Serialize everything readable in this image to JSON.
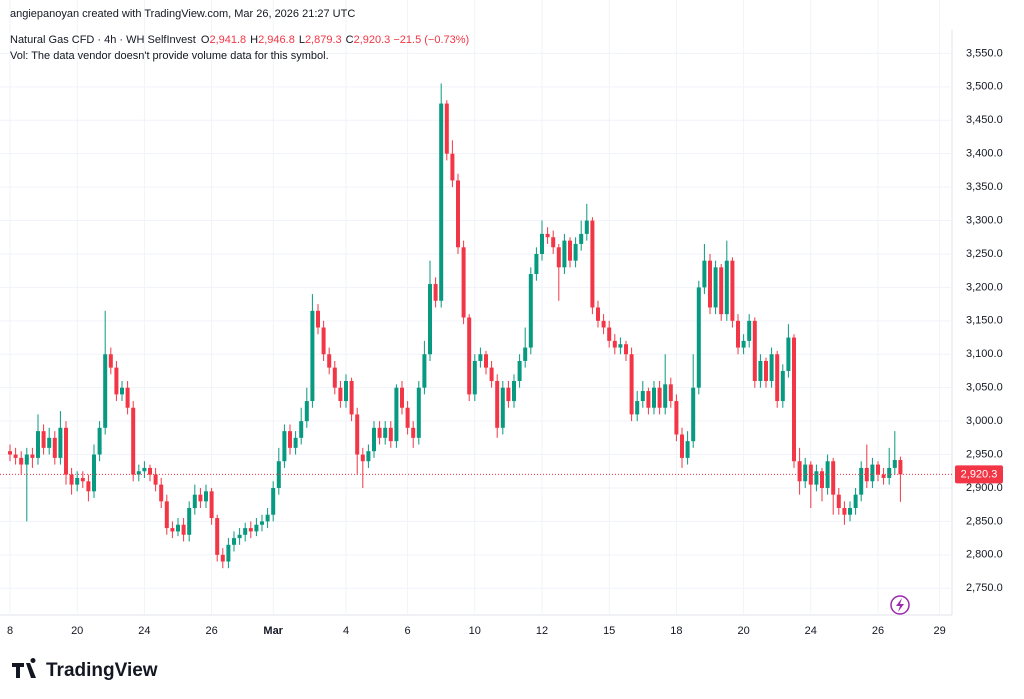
{
  "header": {
    "credit": "angiepanoyan created with TradingView.com, Mar 26, 2026 21:27 UTC"
  },
  "legend": {
    "symbol": "Natural Gas CFD · 4h · WH SelfInvest",
    "fields": [
      {
        "key": "O",
        "value": "2,941.8"
      },
      {
        "key": "H",
        "value": "2,946.8"
      },
      {
        "key": "L",
        "value": "2,879.3"
      },
      {
        "key": "C",
        "value": "2,920.3"
      }
    ],
    "change": "−21.5 (−0.73%)",
    "volume_note": "Vol: The data vendor doesn't provide volume data for this symbol."
  },
  "branding": "TradingView",
  "chart_data": {
    "type": "candlestick",
    "up_color": "#089981",
    "down_color": "#f23645",
    "grid": true,
    "ylim": [
      2710,
      3585
    ],
    "yticks": [
      {
        "value": 2750,
        "label": "2,750.0"
      },
      {
        "value": 2800,
        "label": "2,800.0"
      },
      {
        "value": 2850,
        "label": "2,850.0"
      },
      {
        "value": 2900,
        "label": "2,900.0"
      },
      {
        "value": 2950,
        "label": "2,950.0"
      },
      {
        "value": 3000,
        "label": "3,000.0"
      },
      {
        "value": 3050,
        "label": "3,050.0"
      },
      {
        "value": 3100,
        "label": "3,100.0"
      },
      {
        "value": 3150,
        "label": "3,150.0"
      },
      {
        "value": 3200,
        "label": "3,200.0"
      },
      {
        "value": 3250,
        "label": "3,250.0"
      },
      {
        "value": 3300,
        "label": "3,300.0"
      },
      {
        "value": 3350,
        "label": "3,350.0"
      },
      {
        "value": 3400,
        "label": "3,400.0"
      },
      {
        "value": 3450,
        "label": "3,450.0"
      },
      {
        "value": 3500,
        "label": "3,500.0"
      },
      {
        "value": 3550,
        "label": "3,550.0"
      }
    ],
    "xticks": [
      {
        "value": 0,
        "label": "8"
      },
      {
        "value": 12,
        "label": "20"
      },
      {
        "value": 24,
        "label": "24"
      },
      {
        "value": 36,
        "label": "26"
      },
      {
        "value": 47,
        "label": "Mar"
      },
      {
        "value": 60,
        "label": "4"
      },
      {
        "value": 71,
        "label": "6"
      },
      {
        "value": 83,
        "label": "10"
      },
      {
        "value": 95,
        "label": "12"
      },
      {
        "value": 107,
        "label": "15"
      },
      {
        "value": 119,
        "label": "18"
      },
      {
        "value": 131,
        "label": "20"
      },
      {
        "value": 143,
        "label": "24"
      },
      {
        "value": 155,
        "label": "26"
      },
      {
        "value": 166,
        "label": "29"
      }
    ],
    "last_price": 2920.3,
    "last_price_label": "2,920.3",
    "open": [
      2955,
      2950,
      2945,
      2935,
      2950,
      2945,
      2985,
      2960,
      2975,
      2945,
      2990,
      2920,
      2905,
      2915,
      2910,
      2895,
      2950,
      2990,
      3100,
      3080,
      3040,
      3050,
      3020,
      2920,
      2925,
      2930,
      2920,
      2905,
      2880,
      2840,
      2835,
      2845,
      2830,
      2870,
      2890,
      2880,
      2895,
      2855,
      2800,
      2790,
      2815,
      2825,
      2830,
      2840,
      2835,
      2845,
      2850,
      2860,
      2900,
      2940,
      2985,
      2960,
      2975,
      3000,
      3030,
      3165,
      3140,
      3100,
      3080,
      3050,
      3030,
      3060,
      3010,
      2950,
      2940,
      2955,
      2990,
      2975,
      2990,
      2970,
      3050,
      3020,
      2990,
      2975,
      3050,
      3100,
      3205,
      3180,
      3475,
      3400,
      3360,
      3260,
      3155,
      3040,
      3090,
      3100,
      3080,
      3060,
      2990,
      3050,
      3030,
      3060,
      3090,
      3110,
      3220,
      3250,
      3280,
      3275,
      3260,
      3230,
      3270,
      3240,
      3265,
      3280,
      3300,
      3170,
      3150,
      3140,
      3120,
      3110,
      3115,
      3100,
      3010,
      3030,
      3045,
      3020,
      3050,
      3020,
      3055,
      3030,
      2980,
      2945,
      2970,
      3050,
      3200,
      3240,
      3170,
      3230,
      3160,
      3240,
      3150,
      3110,
      3120,
      3150,
      3060,
      3090,
      3060,
      3100,
      3030,
      3075,
      3125,
      2940,
      2910,
      2935,
      2905,
      2925,
      2900,
      2940,
      2890,
      2870,
      2860,
      2870,
      2890,
      2930,
      2910,
      2935,
      2920,
      2915,
      2930,
      2941.8
    ],
    "high": [
      2965,
      2960,
      2955,
      2960,
      2960,
      3010,
      2995,
      2990,
      2985,
      3015,
      3000,
      2930,
      2925,
      2925,
      2920,
      2965,
      3000,
      3165,
      3110,
      3090,
      3060,
      3060,
      3030,
      2935,
      2940,
      2935,
      2930,
      2915,
      2890,
      2850,
      2855,
      2855,
      2880,
      2905,
      2900,
      2905,
      2900,
      2860,
      2810,
      2825,
      2835,
      2840,
      2848,
      2850,
      2855,
      2860,
      2870,
      2910,
      2960,
      2995,
      2995,
      2985,
      3020,
      3050,
      3190,
      3175,
      3150,
      3110,
      3090,
      3060,
      3070,
      3065,
      3020,
      2960,
      2965,
      3000,
      3000,
      3000,
      3000,
      3055,
      3060,
      3030,
      3000,
      3060,
      3120,
      3240,
      3215,
      3505,
      3480,
      3420,
      3370,
      3270,
      3160,
      3100,
      3110,
      3105,
      3090,
      3070,
      3060,
      3060,
      3070,
      3100,
      3140,
      3230,
      3260,
      3300,
      3290,
      3285,
      3265,
      3280,
      3275,
      3275,
      3300,
      3325,
      3305,
      3180,
      3160,
      3150,
      3130,
      3125,
      3120,
      3110,
      3045,
      3060,
      3050,
      3060,
      3060,
      3100,
      3065,
      3040,
      2990,
      2985,
      3100,
      3210,
      3265,
      3250,
      3240,
      3235,
      3270,
      3245,
      3160,
      3130,
      3160,
      3155,
      3100,
      3095,
      3110,
      3105,
      3085,
      3145,
      3130,
      2960,
      2945,
      2940,
      2935,
      2930,
      2950,
      2945,
      2900,
      2880,
      2880,
      2900,
      2940,
      2965,
      2945,
      2940,
      2930,
      2960,
      2985,
      2946.8
    ],
    "low": [
      2940,
      2935,
      2920,
      2850,
      2930,
      2935,
      2950,
      2950,
      2935,
      2935,
      2905,
      2890,
      2895,
      2900,
      2880,
      2885,
      2940,
      2980,
      3070,
      3030,
      3030,
      3010,
      2910,
      2910,
      2915,
      2910,
      2895,
      2870,
      2830,
      2825,
      2828,
      2820,
      2820,
      2860,
      2870,
      2870,
      2845,
      2790,
      2780,
      2780,
      2805,
      2815,
      2820,
      2825,
      2828,
      2835,
      2840,
      2850,
      2890,
      2930,
      2950,
      2950,
      2965,
      2990,
      3020,
      3130,
      3090,
      3070,
      3040,
      3020,
      3020,
      3000,
      2920,
      2900,
      2930,
      2945,
      2965,
      2965,
      2960,
      2960,
      3010,
      2980,
      2960,
      2965,
      3040,
      3090,
      3170,
      3170,
      3390,
      3350,
      3250,
      3145,
      3030,
      3030,
      3080,
      3070,
      3050,
      2975,
      2980,
      3020,
      3020,
      3050,
      3080,
      3100,
      3210,
      3240,
      3265,
      3250,
      3180,
      3220,
      3230,
      3230,
      3255,
      3270,
      3160,
      3140,
      3130,
      3110,
      3100,
      3100,
      3090,
      3000,
      3000,
      3020,
      3010,
      3010,
      3010,
      3010,
      3020,
      2970,
      2930,
      2935,
      2960,
      3040,
      3190,
      3160,
      3160,
      3150,
      3150,
      3140,
      3100,
      3100,
      3110,
      3050,
      3050,
      3050,
      3050,
      3020,
      3020,
      3065,
      2930,
      2890,
      2900,
      2870,
      2895,
      2880,
      2890,
      2860,
      2860,
      2845,
      2850,
      2860,
      2880,
      2900,
      2900,
      2910,
      2905,
      2905,
      2920,
      2879.3
    ],
    "close": [
      2950,
      2945,
      2935,
      2950,
      2945,
      2985,
      2960,
      2975,
      2945,
      2990,
      2920,
      2905,
      2915,
      2910,
      2895,
      2950,
      2990,
      3100,
      3080,
      3040,
      3050,
      3020,
      2920,
      2925,
      2930,
      2920,
      2905,
      2880,
      2840,
      2835,
      2845,
      2830,
      2870,
      2890,
      2880,
      2895,
      2855,
      2800,
      2790,
      2815,
      2825,
      2830,
      2840,
      2835,
      2845,
      2850,
      2860,
      2900,
      2940,
      2985,
      2960,
      2975,
      3000,
      3030,
      3165,
      3140,
      3100,
      3080,
      3050,
      3030,
      3060,
      3010,
      2950,
      2940,
      2955,
      2990,
      2975,
      2990,
      2970,
      3050,
      3020,
      2990,
      2975,
      3050,
      3100,
      3205,
      3180,
      3475,
      3400,
      3360,
      3260,
      3155,
      3040,
      3090,
      3100,
      3080,
      3060,
      2990,
      3050,
      3030,
      3060,
      3090,
      3110,
      3220,
      3250,
      3280,
      3275,
      3260,
      3230,
      3270,
      3240,
      3265,
      3280,
      3300,
      3170,
      3150,
      3140,
      3120,
      3110,
      3115,
      3100,
      3010,
      3030,
      3045,
      3020,
      3050,
      3020,
      3055,
      3030,
      2980,
      2945,
      2970,
      3050,
      3200,
      3240,
      3170,
      3230,
      3160,
      3240,
      3150,
      3110,
      3120,
      3150,
      3060,
      3090,
      3060,
      3100,
      3030,
      3075,
      3125,
      2940,
      2910,
      2935,
      2905,
      2925,
      2900,
      2940,
      2890,
      2870,
      2860,
      2870,
      2890,
      2930,
      2910,
      2935,
      2920,
      2915,
      2930,
      2941.8,
      2920.3
    ]
  }
}
